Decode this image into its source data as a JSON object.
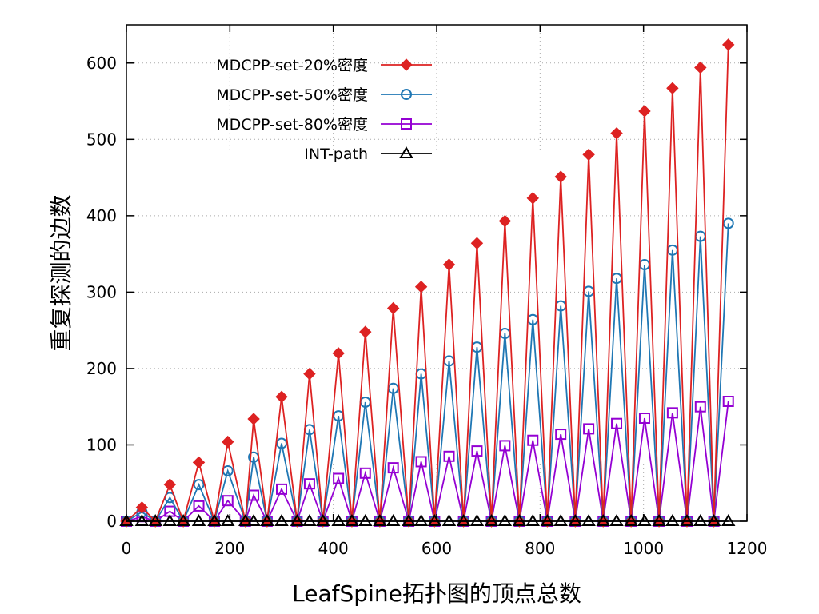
{
  "chart_data": {
    "type": "line",
    "title": "",
    "xlabel": "LeafSpine拓扑图的顶点总数",
    "ylabel": "重复探测的边数",
    "xlim": [
      0,
      1200
    ],
    "ylim": [
      0,
      650
    ],
    "xticks": [
      0,
      200,
      400,
      600,
      800,
      1000,
      1200
    ],
    "yticks": [
      0,
      100,
      200,
      300,
      400,
      500,
      600
    ],
    "grid": true,
    "legend_position": "top-left",
    "x": [
      0,
      30,
      56,
      84,
      110,
      140,
      170,
      196,
      230,
      246,
      272,
      300,
      330,
      354,
      380,
      410,
      436,
      462,
      490,
      516,
      546,
      570,
      596,
      624,
      652,
      678,
      706,
      732,
      760,
      786,
      814,
      840,
      868,
      894,
      922,
      948,
      976,
      1002,
      1030,
      1056,
      1084,
      1110,
      1136,
      1164
    ],
    "series": [
      {
        "name": "MDCPP-set-20%密度",
        "color": "#dd2222",
        "marker": "diamond-filled",
        "values": [
          0,
          18,
          0,
          48,
          0,
          77,
          0,
          104,
          0,
          134,
          0,
          163,
          0,
          193,
          0,
          220,
          0,
          248,
          0,
          279,
          0,
          307,
          0,
          336,
          0,
          364,
          0,
          393,
          0,
          423,
          0,
          451,
          0,
          480,
          0,
          508,
          0,
          537,
          0,
          567,
          0,
          594,
          0,
          624
        ]
      },
      {
        "name": "MDCPP-set-50%密度",
        "color": "#1f77b4",
        "marker": "circle-open",
        "values": [
          0,
          12,
          0,
          31,
          0,
          48,
          0,
          66,
          0,
          84,
          0,
          102,
          0,
          120,
          0,
          138,
          0,
          156,
          0,
          174,
          0,
          193,
          0,
          210,
          0,
          228,
          0,
          246,
          0,
          264,
          0,
          282,
          0,
          301,
          0,
          318,
          0,
          336,
          0,
          355,
          0,
          373,
          0,
          390
        ]
      },
      {
        "name": "MDCPP-set-80%密度",
        "color": "#9400d3",
        "marker": "square-open",
        "values": [
          0,
          6,
          0,
          13,
          0,
          20,
          0,
          27,
          0,
          34,
          0,
          42,
          0,
          49,
          0,
          56,
          0,
          63,
          0,
          70,
          0,
          78,
          0,
          85,
          0,
          92,
          0,
          99,
          0,
          106,
          0,
          114,
          0,
          121,
          0,
          128,
          0,
          135,
          0,
          142,
          0,
          150,
          0,
          157
        ]
      },
      {
        "name": "INT-path",
        "color": "#000000",
        "marker": "triangle-open",
        "values": [
          0,
          0,
          0,
          0,
          0,
          0,
          0,
          0,
          0,
          0,
          0,
          0,
          0,
          0,
          0,
          0,
          0,
          0,
          0,
          0,
          0,
          0,
          0,
          0,
          0,
          0,
          0,
          0,
          0,
          0,
          0,
          0,
          0,
          0,
          0,
          0,
          0,
          0,
          0,
          0,
          0,
          0,
          0,
          0
        ]
      }
    ]
  }
}
